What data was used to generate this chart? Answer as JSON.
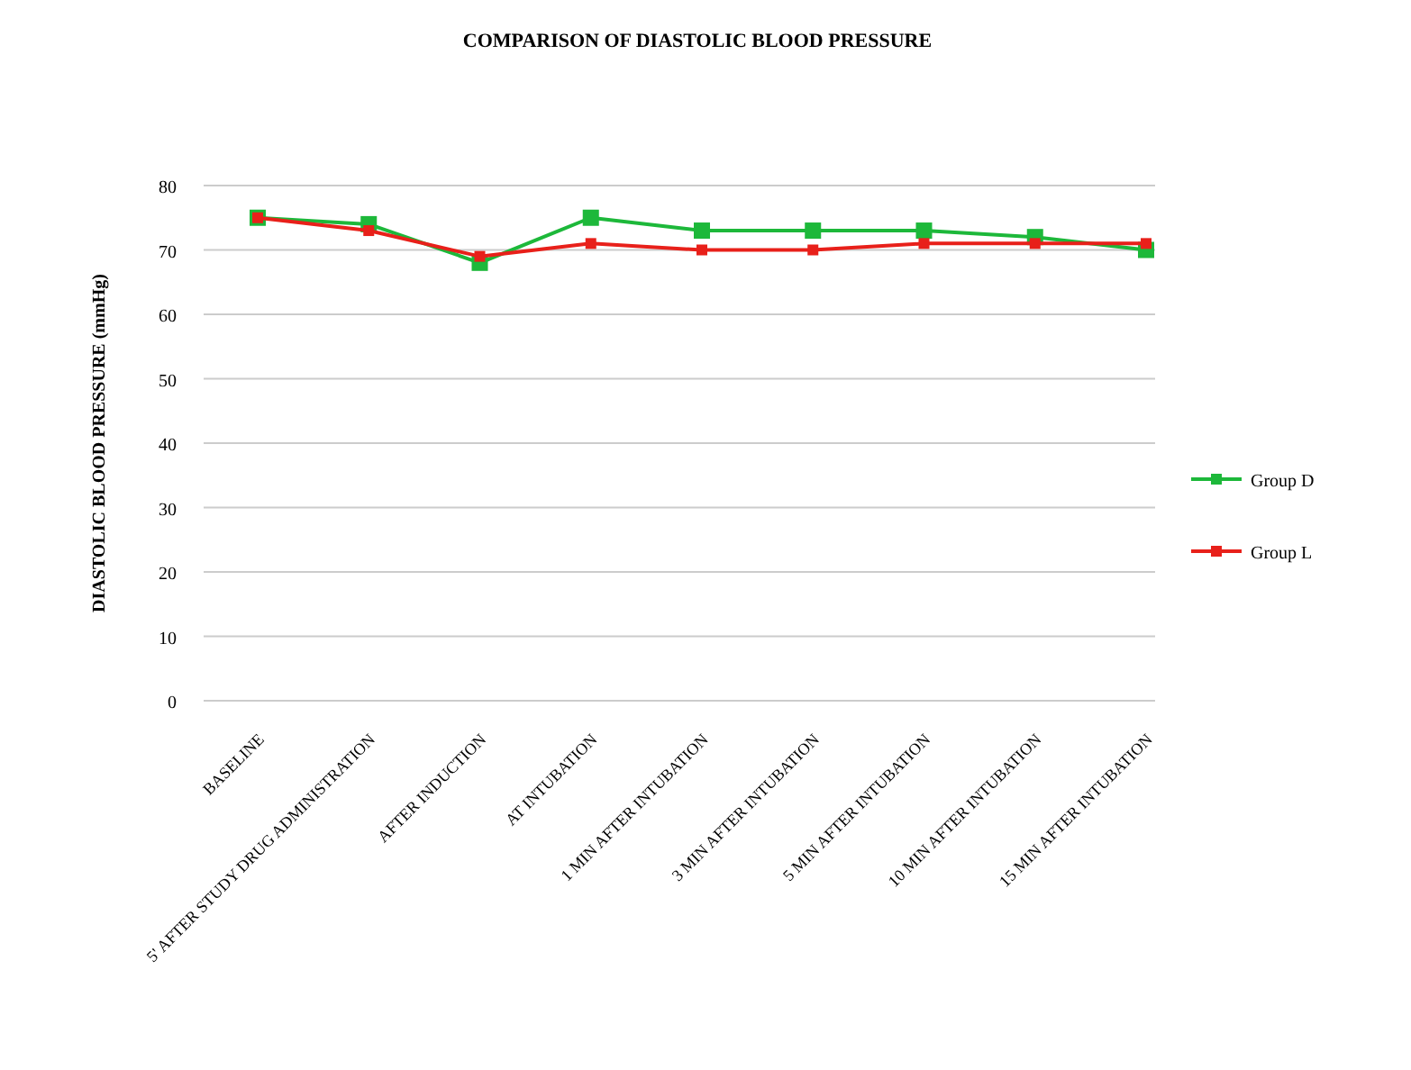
{
  "chart_data": {
    "type": "line",
    "title": "COMPARISON OF DIASTOLIC BLOOD PRESSURE",
    "ylabel": "DIASTOLIC BLOOD PRESSURE (mmHg)",
    "categories": [
      "BASELINE",
      "5' AFTER STUDY DRUG ADMINISTRATION",
      "AFTER INDUCTION",
      "AT INTUBATION",
      "1 MIN AFTER INTUBATION",
      "3 MIN AFTER INTUBATION",
      "5 MIN AFTER INTUBATION",
      "10 MIN AFTER INTUBATION",
      "15 MIN AFTER INTUBATION"
    ],
    "series": [
      {
        "name": "Group D",
        "color": "#1db83a",
        "values": [
          75,
          74,
          68,
          75,
          73,
          73,
          73,
          72,
          70
        ]
      },
      {
        "name": "Group L",
        "color": "#e8201a",
        "values": [
          75,
          73,
          69,
          71,
          70,
          70,
          71,
          71,
          71
        ]
      }
    ],
    "ylim": [
      0,
      80
    ],
    "yticks": [
      0,
      10,
      20,
      30,
      40,
      50,
      60,
      70,
      80
    ],
    "grid": "y",
    "legend": "right",
    "marker": "square",
    "line_style": "solid"
  }
}
